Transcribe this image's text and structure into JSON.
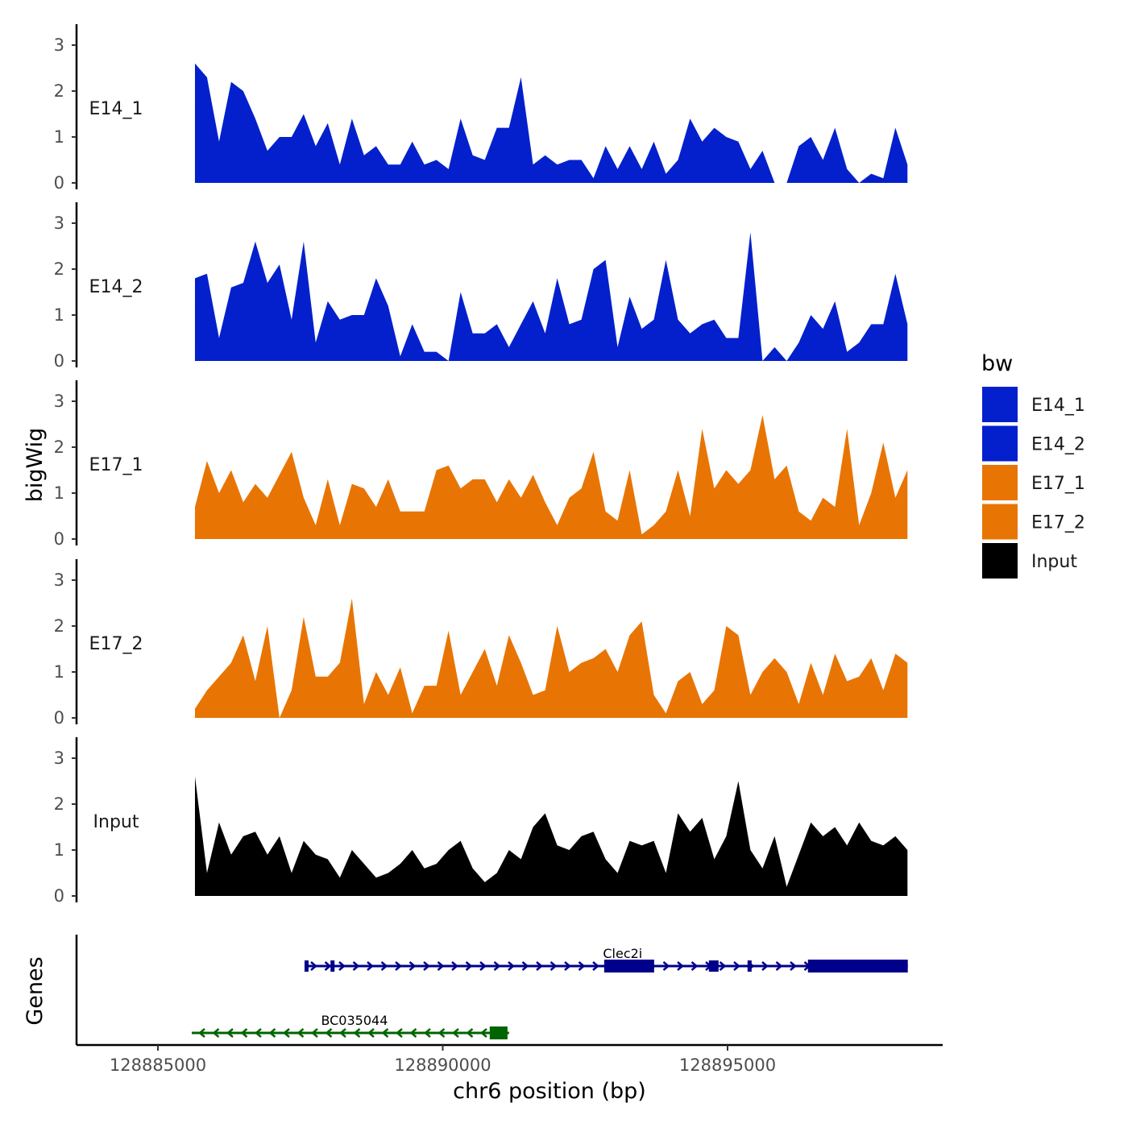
{
  "chart_data": {
    "type": "area",
    "xlabel": "chr6 position (bp)",
    "ylabel": "bigWig",
    "gene_panel_label": "Genes",
    "xlim": [
      128883571,
      128898777
    ],
    "ylim": [
      0,
      3.4
    ],
    "x_ticks": [
      128885000,
      128890000,
      128895000
    ],
    "x_tick_labels": [
      "128885000",
      "128890000",
      "128895000"
    ],
    "y_ticks": [
      0,
      1,
      2,
      3
    ],
    "x_start": 128885650,
    "x_step": 212,
    "legend": {
      "title": "bw",
      "placement": "right",
      "entries": [
        {
          "label": "E14_1",
          "color": "#0320CC"
        },
        {
          "label": "E14_2",
          "color": "#0320CC"
        },
        {
          "label": "E17_1",
          "color": "#E87503"
        },
        {
          "label": "E17_2",
          "color": "#E87503"
        },
        {
          "label": "Input",
          "color": "#000000"
        }
      ]
    },
    "series": [
      {
        "name": "E14_1",
        "color": "#0320CC",
        "values": [
          2.6,
          2.3,
          0.9,
          2.2,
          2.0,
          1.4,
          0.7,
          1.0,
          1.0,
          1.5,
          0.8,
          1.3,
          0.4,
          1.4,
          0.6,
          0.8,
          0.4,
          0.4,
          0.9,
          0.4,
          0.5,
          0.3,
          1.4,
          0.6,
          0.5,
          1.2,
          1.2,
          2.3,
          0.4,
          0.6,
          0.4,
          0.5,
          0.5,
          0.1,
          0.8,
          0.3,
          0.8,
          0.3,
          0.9,
          0.2,
          0.5,
          1.4,
          0.9,
          1.2,
          1.0,
          0.9,
          0.3,
          0.7,
          0.0,
          0.0,
          0.8,
          1.0,
          0.5,
          1.2,
          0.3,
          0.0,
          0.2,
          0.1,
          1.2,
          0.4
        ]
      },
      {
        "name": "E14_2",
        "color": "#0320CC",
        "values": [
          1.8,
          1.9,
          0.5,
          1.6,
          1.7,
          2.6,
          1.7,
          2.1,
          0.9,
          2.6,
          0.4,
          1.3,
          0.9,
          1.0,
          1.0,
          1.8,
          1.2,
          0.1,
          0.8,
          0.2,
          0.2,
          0.0,
          1.5,
          0.6,
          0.6,
          0.8,
          0.3,
          0.8,
          1.3,
          0.6,
          1.8,
          0.8,
          0.9,
          2.0,
          2.2,
          0.3,
          1.4,
          0.7,
          0.9,
          2.2,
          0.9,
          0.6,
          0.8,
          0.9,
          0.5,
          0.5,
          2.8,
          0.0,
          0.3,
          0.0,
          0.4,
          1.0,
          0.7,
          1.3,
          0.2,
          0.4,
          0.8,
          0.8,
          1.9,
          0.8
        ]
      },
      {
        "name": "E17_1",
        "color": "#E87503",
        "values": [
          0.7,
          1.7,
          1.0,
          1.5,
          0.8,
          1.2,
          0.9,
          1.4,
          1.9,
          0.9,
          0.3,
          1.3,
          0.3,
          1.2,
          1.1,
          0.7,
          1.3,
          0.6,
          0.6,
          0.6,
          1.5,
          1.6,
          1.1,
          1.3,
          1.3,
          0.8,
          1.3,
          0.9,
          1.4,
          0.8,
          0.3,
          0.9,
          1.1,
          1.9,
          0.6,
          0.4,
          1.5,
          0.1,
          0.3,
          0.6,
          1.5,
          0.5,
          2.4,
          1.1,
          1.5,
          1.2,
          1.5,
          2.7,
          1.3,
          1.6,
          0.6,
          0.4,
          0.9,
          0.7,
          2.4,
          0.3,
          1.0,
          2.1,
          0.9,
          1.5
        ]
      },
      {
        "name": "E17_2",
        "color": "#E87503",
        "values": [
          0.2,
          0.6,
          0.9,
          1.2,
          1.8,
          0.8,
          2.0,
          0.0,
          0.6,
          2.2,
          0.9,
          0.9,
          1.2,
          2.6,
          0.3,
          1.0,
          0.5,
          1.1,
          0.1,
          0.7,
          0.7,
          1.9,
          0.5,
          1.0,
          1.5,
          0.7,
          1.8,
          1.2,
          0.5,
          0.6,
          2.0,
          1.0,
          1.2,
          1.3,
          1.5,
          1.0,
          1.8,
          2.1,
          0.5,
          0.1,
          0.8,
          1.0,
          0.3,
          0.6,
          2.0,
          1.8,
          0.5,
          1.0,
          1.3,
          1.0,
          0.3,
          1.2,
          0.5,
          1.4,
          0.8,
          0.9,
          1.3,
          0.6,
          1.4,
          1.2
        ]
      },
      {
        "name": "Input",
        "color": "#000000",
        "values": [
          2.6,
          0.5,
          1.6,
          0.9,
          1.3,
          1.4,
          0.9,
          1.3,
          0.5,
          1.2,
          0.9,
          0.8,
          0.4,
          1.0,
          0.7,
          0.4,
          0.5,
          0.7,
          1.0,
          0.6,
          0.7,
          1.0,
          1.2,
          0.6,
          0.3,
          0.5,
          1.0,
          0.8,
          1.5,
          1.8,
          1.1,
          1.0,
          1.3,
          1.4,
          0.8,
          0.5,
          1.2,
          1.1,
          1.2,
          0.5,
          1.8,
          1.4,
          1.7,
          0.8,
          1.3,
          2.5,
          1.0,
          0.6,
          1.3,
          0.2,
          0.9,
          1.6,
          1.3,
          1.5,
          1.1,
          1.6,
          1.2,
          1.1,
          1.3,
          1.0
        ]
      }
    ],
    "genes": [
      {
        "name": "Clec2i",
        "strand": "+",
        "color": "#00008B",
        "start": 128887574,
        "end": 128898164,
        "exons": [
          [
            128887574,
            128887640
          ],
          [
            128888030,
            128888080
          ],
          [
            128892834,
            128893711
          ],
          [
            128894672,
            128894842
          ],
          [
            128895351,
            128895422
          ],
          [
            128896411,
            128898164
          ]
        ],
        "thick": [
          [
            128892834,
            128893711
          ],
          [
            128896411,
            128898164
          ]
        ]
      },
      {
        "name": "BC035044",
        "strand": "-",
        "color": "#006400",
        "start": 128885594,
        "end": 128891165,
        "exons": [
          [
            128890825,
            128891137
          ]
        ],
        "thick": [
          [
            128890825,
            128891137
          ]
        ]
      }
    ]
  }
}
